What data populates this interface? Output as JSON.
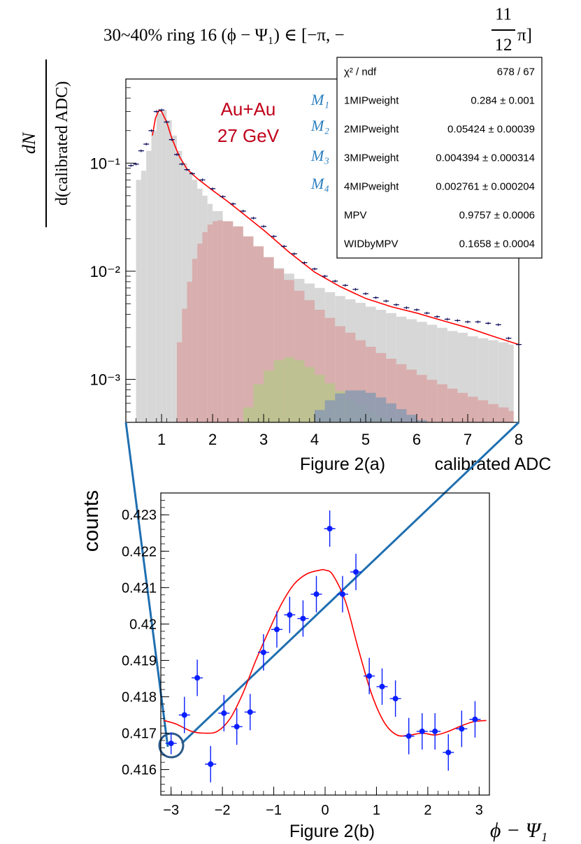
{
  "title": "30~40%   ring 16   (ϕ − Ψ₁) ∈ [−π, −11/12 π]",
  "title_parts": {
    "main": "30~40%   ring 16   (ϕ − Ψ₁) ∈ [−π, −",
    "frac_num": "11",
    "frac_den": "12",
    "tail": "π]"
  },
  "colors": {
    "fit": "#ff0000",
    "data_a": "#0a0a5a",
    "data_b": "#0a1eff",
    "zoom_line": "#1f6fb0",
    "label_red": "#c0001a",
    "model_label_blue": "#2a7fc0",
    "hist_1mip": "#d7d7d7",
    "hist_2mip": "#d9aeae",
    "hist_3mip": "#b9c48c",
    "hist_4mip": "#8a9ab0",
    "hist_4mip_tail": "#b79bd0"
  },
  "chart_data": [
    {
      "type": "line",
      "panel": "a",
      "caption": "Figure 2(a)",
      "ylabel_num": "dN",
      "ylabel_den": "d(calibrated ADC)",
      "xlabel": "calibrated ADC",
      "xlim": [
        0.3,
        8.0
      ],
      "ylim": [
        0.0004,
        0.6
      ],
      "yscale": "log",
      "xticks": [
        1,
        2,
        3,
        4,
        5,
        6,
        7,
        8
      ],
      "yticks": [
        {
          "value": 0.1,
          "label": "10⁻¹"
        },
        {
          "value": 0.01,
          "label": "10⁻²"
        },
        {
          "value": 0.001,
          "label": "10⁻³"
        }
      ],
      "annotation": [
        "Au+Au",
        "27 GeV"
      ],
      "model_labels": [
        "M₁",
        "M₂",
        "M₃",
        "M₄"
      ],
      "stats_box": [
        {
          "name": "χ² / ndf",
          "value": "678 / 67"
        },
        {
          "name": "1MIPweight",
          "value": "0.284 ± 0.001"
        },
        {
          "name": "2MIPweight",
          "value": "0.05424 ± 0.00039"
        },
        {
          "name": "3MIPweight",
          "value": "0.004394 ± 0.000314"
        },
        {
          "name": "4MIPweight",
          "value": "0.002761 ± 0.000204"
        },
        {
          "name": "MPV",
          "value": "0.9757 ± 0.0006"
        },
        {
          "name": "WIDbyMPV",
          "value": "0.1658 ± 0.0004"
        }
      ],
      "fit_points": {
        "x": [
          0.82,
          0.88,
          0.95,
          1.0,
          1.1,
          1.2,
          1.35,
          1.5,
          1.7,
          2.0,
          2.3,
          2.6,
          3.0,
          3.5,
          4.0,
          4.5,
          5.0,
          5.5,
          6.0,
          6.5,
          7.0,
          7.5,
          8.0
        ],
        "y": [
          0.18,
          0.26,
          0.31,
          0.3,
          0.24,
          0.17,
          0.115,
          0.088,
          0.072,
          0.056,
          0.044,
          0.034,
          0.024,
          0.015,
          0.0098,
          0.0072,
          0.0056,
          0.0047,
          0.0041,
          0.0035,
          0.003,
          0.0025,
          0.0021
        ]
      },
      "data_points": {
        "x": [
          0.4,
          0.5,
          0.6,
          0.7,
          0.8,
          0.9,
          1.0,
          1.1,
          1.2,
          1.3,
          1.4,
          1.5,
          1.6,
          1.8,
          2.0,
          2.2,
          2.4,
          2.6,
          2.8,
          3.0,
          3.2,
          3.4,
          3.6,
          3.8,
          4.0,
          4.2,
          4.4,
          4.6,
          4.8,
          5.0,
          5.2,
          5.4,
          5.6,
          5.8,
          6.0,
          6.2,
          6.4,
          6.6,
          6.8,
          7.0,
          7.2,
          7.4,
          7.6,
          7.8,
          8.0
        ],
        "y": [
          0.095,
          0.098,
          0.13,
          0.15,
          0.2,
          0.3,
          0.31,
          0.24,
          0.165,
          0.12,
          0.098,
          0.087,
          0.08,
          0.07,
          0.058,
          0.049,
          0.042,
          0.036,
          0.031,
          0.026,
          0.021,
          0.017,
          0.0145,
          0.012,
          0.0105,
          0.009,
          0.0081,
          0.0074,
          0.0068,
          0.0062,
          0.0057,
          0.0053,
          0.0049,
          0.0046,
          0.0044,
          0.0041,
          0.0038,
          0.0036,
          0.0035,
          0.0034,
          0.0034,
          0.0033,
          0.0032,
          0.0024,
          0.0021
        ]
      },
      "components": [
        {
          "name": "1MIP",
          "x": [
            0.5,
            0.6,
            0.7,
            0.8,
            0.9,
            1.0,
            1.1,
            1.2,
            1.3,
            1.4,
            1.5,
            1.6,
            1.7,
            1.8,
            1.9,
            2.0,
            2.2,
            2.4,
            2.6,
            2.8,
            3.0,
            3.2,
            3.4,
            3.6,
            3.8,
            4.0,
            4.2,
            4.4,
            4.6,
            4.8,
            5.0,
            5.2,
            5.4,
            5.6,
            5.8,
            6.0,
            6.2,
            6.4,
            6.6,
            6.8,
            7.0,
            7.2,
            7.4,
            7.6,
            7.8
          ],
          "y": [
            0.07,
            0.085,
            0.13,
            0.2,
            0.29,
            0.31,
            0.25,
            0.18,
            0.13,
            0.1,
            0.083,
            0.07,
            0.058,
            0.05,
            0.042,
            0.036,
            0.028,
            0.022,
            0.018,
            0.0148,
            0.0125,
            0.0107,
            0.0095,
            0.0085,
            0.0077,
            0.007,
            0.0064,
            0.0059,
            0.0055,
            0.0051,
            0.0047,
            0.0044,
            0.0041,
            0.0038,
            0.0036,
            0.0034,
            0.0032,
            0.003,
            0.0028,
            0.0027,
            0.0025,
            0.0024,
            0.0023,
            0.0022,
            0.0021
          ]
        },
        {
          "name": "2MIP",
          "x": [
            1.3,
            1.4,
            1.5,
            1.6,
            1.7,
            1.8,
            1.9,
            2.0,
            2.1,
            2.2,
            2.4,
            2.6,
            2.8,
            3.0,
            3.2,
            3.4,
            3.6,
            3.8,
            4.0,
            4.2,
            4.4,
            4.6,
            4.8,
            5.0,
            5.2,
            5.4,
            5.6,
            5.8,
            6.0,
            6.2,
            6.4,
            6.6,
            6.8,
            7.0,
            7.2,
            7.4,
            7.6,
            7.8
          ],
          "y": [
            0.0022,
            0.0045,
            0.008,
            0.013,
            0.018,
            0.023,
            0.027,
            0.029,
            0.0295,
            0.029,
            0.026,
            0.021,
            0.017,
            0.0135,
            0.0105,
            0.0083,
            0.0066,
            0.0054,
            0.0044,
            0.0037,
            0.0031,
            0.0027,
            0.0023,
            0.002,
            0.00175,
            0.00155,
            0.00138,
            0.00123,
            0.0011,
            0.00099,
            0.0009,
            0.00082,
            0.00075,
            0.00069,
            0.00064,
            0.00059,
            0.00055,
            0.00051
          ]
        },
        {
          "name": "3MIP",
          "x": [
            2.5,
            2.6,
            2.8,
            3.0,
            3.2,
            3.4,
            3.6,
            3.8,
            4.0,
            4.2,
            4.4,
            4.6,
            4.8,
            5.0,
            5.2,
            5.4,
            5.6
          ],
          "y": [
            0.0004,
            0.00055,
            0.0009,
            0.0012,
            0.0015,
            0.0016,
            0.0015,
            0.0013,
            0.0011,
            0.00092,
            0.00078,
            0.00066,
            0.00057,
            0.0005,
            0.00045,
            0.00042,
            0.0004
          ]
        },
        {
          "name": "4MIP",
          "x": [
            3.8,
            4.0,
            4.2,
            4.4,
            4.6,
            4.8,
            5.0,
            5.2,
            5.4,
            5.6,
            5.8,
            6.0,
            6.2
          ],
          "y": [
            0.0004,
            0.00052,
            0.00064,
            0.00074,
            0.00079,
            0.00079,
            0.00075,
            0.00068,
            0.0006,
            0.00053,
            0.00047,
            0.00042,
            0.0004
          ]
        }
      ]
    },
    {
      "type": "scatter",
      "panel": "b",
      "caption": "Figure 2(b)",
      "ylabel": "counts",
      "xlabel": "ϕ − Ψ₁",
      "xlim": [
        -3.2,
        3.2
      ],
      "ylim": [
        0.4153,
        0.4236
      ],
      "xticks": [
        -3,
        -2,
        -1,
        0,
        1,
        2,
        3
      ],
      "xtick_labels": [
        "−3",
        "−2",
        "−1",
        "0",
        "1",
        "2",
        "3"
      ],
      "yticks": [
        0.416,
        0.417,
        0.418,
        0.419,
        0.42,
        0.421,
        0.422,
        0.423
      ],
      "ytick_labels": [
        "0.416",
        "0.417",
        "0.418",
        "0.419",
        "0.42",
        "0.421",
        "0.422",
        "0.423"
      ],
      "x": [
        -3.0,
        -2.74,
        -2.49,
        -2.23,
        -1.97,
        -1.72,
        -1.46,
        -1.2,
        -0.94,
        -0.69,
        -0.43,
        -0.17,
        0.09,
        0.34,
        0.6,
        0.86,
        1.11,
        1.37,
        1.63,
        1.89,
        2.14,
        2.4,
        2.66,
        2.92
      ],
      "y": [
        0.41672,
        0.4175,
        0.41852,
        0.41615,
        0.41755,
        0.41718,
        0.41758,
        0.41922,
        0.41985,
        0.42025,
        0.42015,
        0.42082,
        0.42262,
        0.42082,
        0.42143,
        0.41857,
        0.41828,
        0.41795,
        0.41692,
        0.41705,
        0.41705,
        0.41647,
        0.41712,
        0.41738
      ],
      "yerr": [
        0.0003,
        0.0005,
        0.0005,
        0.0005,
        0.0005,
        0.0005,
        0.0005,
        0.0005,
        0.0005,
        0.0005,
        0.0005,
        0.0005,
        0.0005,
        0.0005,
        0.0005,
        0.0005,
        0.0005,
        0.0005,
        0.0005,
        0.0005,
        0.0005,
        0.0005,
        0.0005,
        0.0005
      ],
      "fit": {
        "x": [
          -3.14,
          -2.9,
          -2.6,
          -2.35,
          -2.1,
          -1.85,
          -1.6,
          -1.35,
          -1.1,
          -0.85,
          -0.6,
          -0.35,
          -0.1,
          0.0,
          0.15,
          0.4,
          0.65,
          0.9,
          1.15,
          1.4,
          1.65,
          1.9,
          2.15,
          2.4,
          2.65,
          2.9,
          3.14
        ],
        "y": [
          0.41735,
          0.41725,
          0.41705,
          0.417,
          0.41705,
          0.4174,
          0.4181,
          0.419,
          0.4198,
          0.42055,
          0.4211,
          0.42138,
          0.42148,
          0.42148,
          0.42135,
          0.4206,
          0.4193,
          0.4181,
          0.4173,
          0.41695,
          0.41695,
          0.417,
          0.41695,
          0.41705,
          0.4172,
          0.41732,
          0.41735
        ]
      }
    }
  ]
}
